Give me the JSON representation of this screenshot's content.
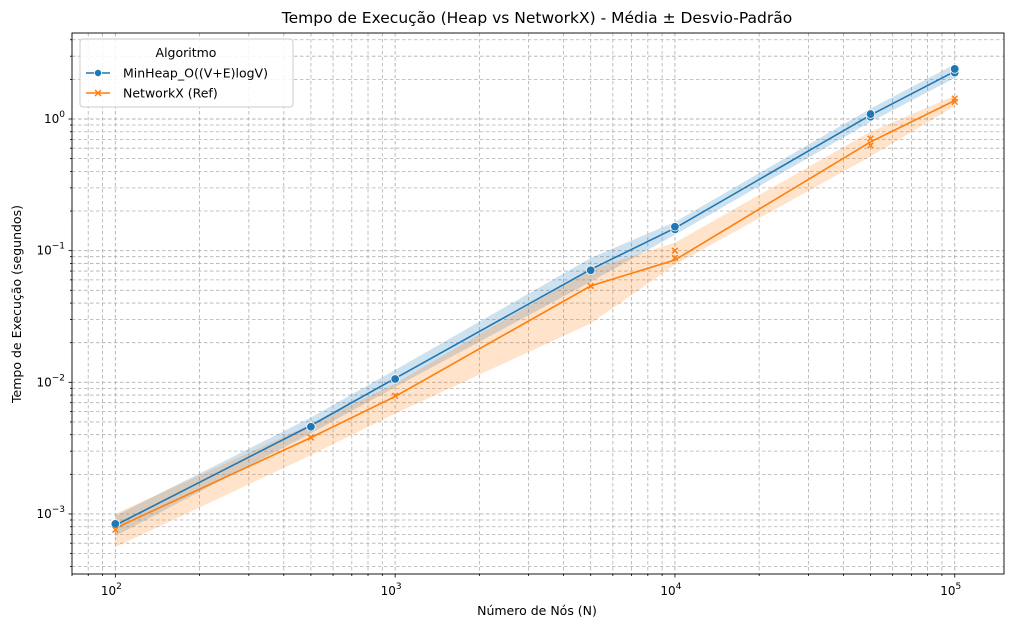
{
  "chart_data": {
    "type": "line",
    "title": "Tempo de Execução (Heap vs NetworkX) - Média ± Desvio-Padrão",
    "xlabel": "Número de Nós (N)",
    "ylabel": "Tempo de Execução (segundos)",
    "xscale": "log",
    "yscale": "log",
    "xlim": [
      70,
      150000
    ],
    "ylim": [
      0.00035,
      4.5
    ],
    "grid": true,
    "x_ticks": [
      {
        "value": 100,
        "base": "10",
        "exp": "2"
      },
      {
        "value": 1000,
        "base": "10",
        "exp": "3"
      },
      {
        "value": 10000,
        "base": "10",
        "exp": "4"
      },
      {
        "value": 100000,
        "base": "10",
        "exp": "5"
      }
    ],
    "y_ticks": [
      {
        "value": 0.001,
        "base": "10",
        "exp": "−3"
      },
      {
        "value": 0.01,
        "base": "10",
        "exp": "−2"
      },
      {
        "value": 0.1,
        "base": "10",
        "exp": "−1"
      },
      {
        "value": 1,
        "base": "10",
        "exp": "0"
      }
    ],
    "legend": {
      "title": "Algoritmo",
      "position": "top-left"
    },
    "series": [
      {
        "name": "MinHeap_O((V+E)logV)",
        "color": "#1f77b4",
        "marker": "circle",
        "x": [
          100,
          500,
          1000,
          5000,
          10000,
          50000,
          100000
        ],
        "y": [
          0.00082,
          0.0047,
          0.0107,
          0.072,
          0.148,
          1.07,
          2.3
        ],
        "y_lower": [
          0.00068,
          0.0041,
          0.0092,
          0.058,
          0.132,
          0.95,
          2.05
        ],
        "y_upper": [
          0.00097,
          0.0054,
          0.0124,
          0.088,
          0.165,
          1.2,
          2.6
        ],
        "samples": [
          {
            "x": 100,
            "y": 0.00084
          },
          {
            "x": 500,
            "y": 0.0046
          },
          {
            "x": 1000,
            "y": 0.0106
          },
          {
            "x": 5000,
            "y": 0.071
          },
          {
            "x": 10000,
            "y": 0.145
          },
          {
            "x": 10000,
            "y": 0.152
          },
          {
            "x": 50000,
            "y": 1.04
          },
          {
            "x": 50000,
            "y": 1.09
          },
          {
            "x": 100000,
            "y": 2.25
          },
          {
            "x": 100000,
            "y": 2.4
          }
        ]
      },
      {
        "name": "NetworkX (Ref)",
        "color": "#ff7f0e",
        "marker": "x",
        "x": [
          100,
          500,
          1000,
          5000,
          10000,
          50000,
          100000
        ],
        "y": [
          0.00078,
          0.0038,
          0.0078,
          0.054,
          0.085,
          0.67,
          1.38
        ],
        "y_lower": [
          0.00056,
          0.0028,
          0.0058,
          0.028,
          0.078,
          0.52,
          1.25
        ],
        "y_upper": [
          0.001,
          0.0048,
          0.0098,
          0.072,
          0.115,
          0.8,
          1.5
        ],
        "samples": [
          {
            "x": 100,
            "y": 0.00076
          },
          {
            "x": 500,
            "y": 0.0038
          },
          {
            "x": 1000,
            "y": 0.0079
          },
          {
            "x": 5000,
            "y": 0.054
          },
          {
            "x": 10000,
            "y": 0.088
          },
          {
            "x": 10000,
            "y": 0.1
          },
          {
            "x": 50000,
            "y": 0.63
          },
          {
            "x": 50000,
            "y": 0.71
          },
          {
            "x": 100000,
            "y": 1.35
          },
          {
            "x": 100000,
            "y": 1.43
          }
        ]
      }
    ]
  }
}
